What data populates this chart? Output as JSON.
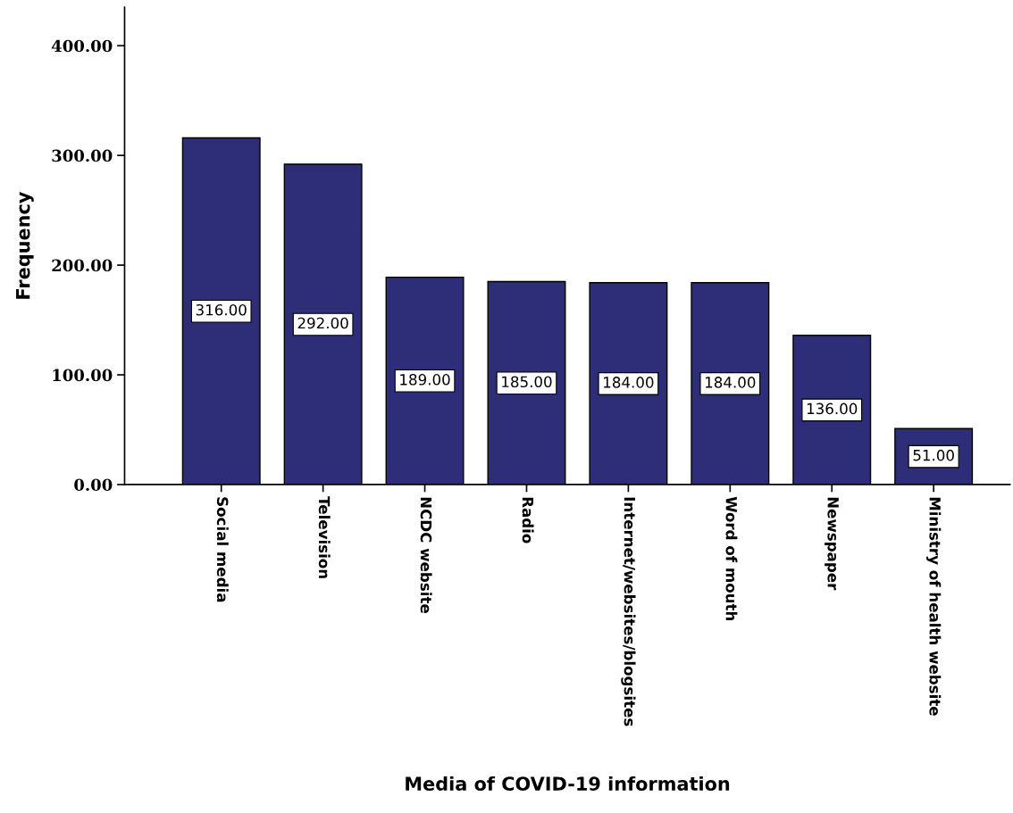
{
  "chart_data": {
    "type": "bar",
    "xlabel": "Media of COVID-19 information",
    "ylabel": "Frequency",
    "categories": [
      "Social media",
      "Television",
      "NCDC website",
      "Radio",
      "Internet/websites/blogsites",
      "Word of mouth",
      "Newspaper",
      "Ministry of health website"
    ],
    "values": [
      316,
      292,
      189,
      185,
      184,
      184,
      136,
      51
    ],
    "value_labels": [
      "316.00",
      "292.00",
      "189.00",
      "185.00",
      "184.00",
      "184.00",
      "136.00",
      "51.00"
    ],
    "color": "#2e2e78",
    "ylim": [
      0,
      435
    ],
    "yticks": [
      {
        "value": 0,
        "label": "0.00"
      },
      {
        "value": 100,
        "label": "100.00"
      },
      {
        "value": 200,
        "label": "200.00"
      },
      {
        "value": 300,
        "label": "300.00"
      },
      {
        "value": 400,
        "label": "400.00"
      }
    ],
    "grid": false,
    "legend": false
  }
}
